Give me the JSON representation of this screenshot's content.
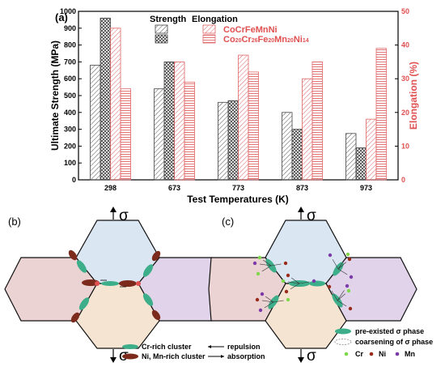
{
  "panel_labels": {
    "a": "(a)",
    "b": "(b)",
    "c": "(c)"
  },
  "chart_data": {
    "type": "bar",
    "categories": [
      "298",
      "673",
      "773",
      "873",
      "973"
    ],
    "xlabel": "Test Temperatures (K)",
    "ylabel_left": "Ultimate Strength (MPa)",
    "ylabel_right": "Elongation (%)",
    "ylim_left": [
      0,
      1000
    ],
    "ylim_right": [
      0,
      50
    ],
    "yticks_left": [
      "0",
      "100",
      "200",
      "300",
      "400",
      "500",
      "600",
      "700",
      "800",
      "900",
      "1000"
    ],
    "yticks_right": [
      "0",
      "10",
      "20",
      "30",
      "40",
      "50"
    ],
    "legend_headers": {
      "strength": "Strength",
      "elongation": "Elongation"
    },
    "legend_alloy_1": "CoCrFeMnNi",
    "legend_alloy_2_parts": [
      "Co",
      "20",
      "Cr",
      "26",
      "Fe",
      "20",
      "Mn",
      "20",
      "Ni",
      "14"
    ],
    "colors": {
      "strength": "#444444",
      "elongation": "#e06666",
      "right_axis": "#e05050"
    },
    "series": [
      {
        "alloy": 1,
        "metric": "strength",
        "values": [
          680,
          540,
          460,
          400,
          275
        ]
      },
      {
        "alloy": 2,
        "metric": "strength",
        "values": [
          960,
          700,
          470,
          300,
          190
        ]
      },
      {
        "alloy": 1,
        "metric": "elongation",
        "values": [
          45,
          35,
          37,
          30,
          18
        ]
      },
      {
        "alloy": 2,
        "metric": "elongation",
        "values": [
          27,
          29,
          32,
          35,
          39
        ]
      }
    ]
  },
  "diagram_b": {
    "sigma": "σ",
    "legend": {
      "cr_cluster": "Cr-rich cluster",
      "nimn_cluster": "Ni, Mn-rich cluster",
      "repulsion": "repulsion",
      "absorption": "absorption"
    }
  },
  "diagram_c": {
    "sigma": "σ",
    "legend": {
      "pre_existed": "pre-existed σ phase",
      "coarsening": "coarsening of σ phase",
      "cr": "Cr",
      "ni": "Ni",
      "mn": "Mn"
    }
  }
}
